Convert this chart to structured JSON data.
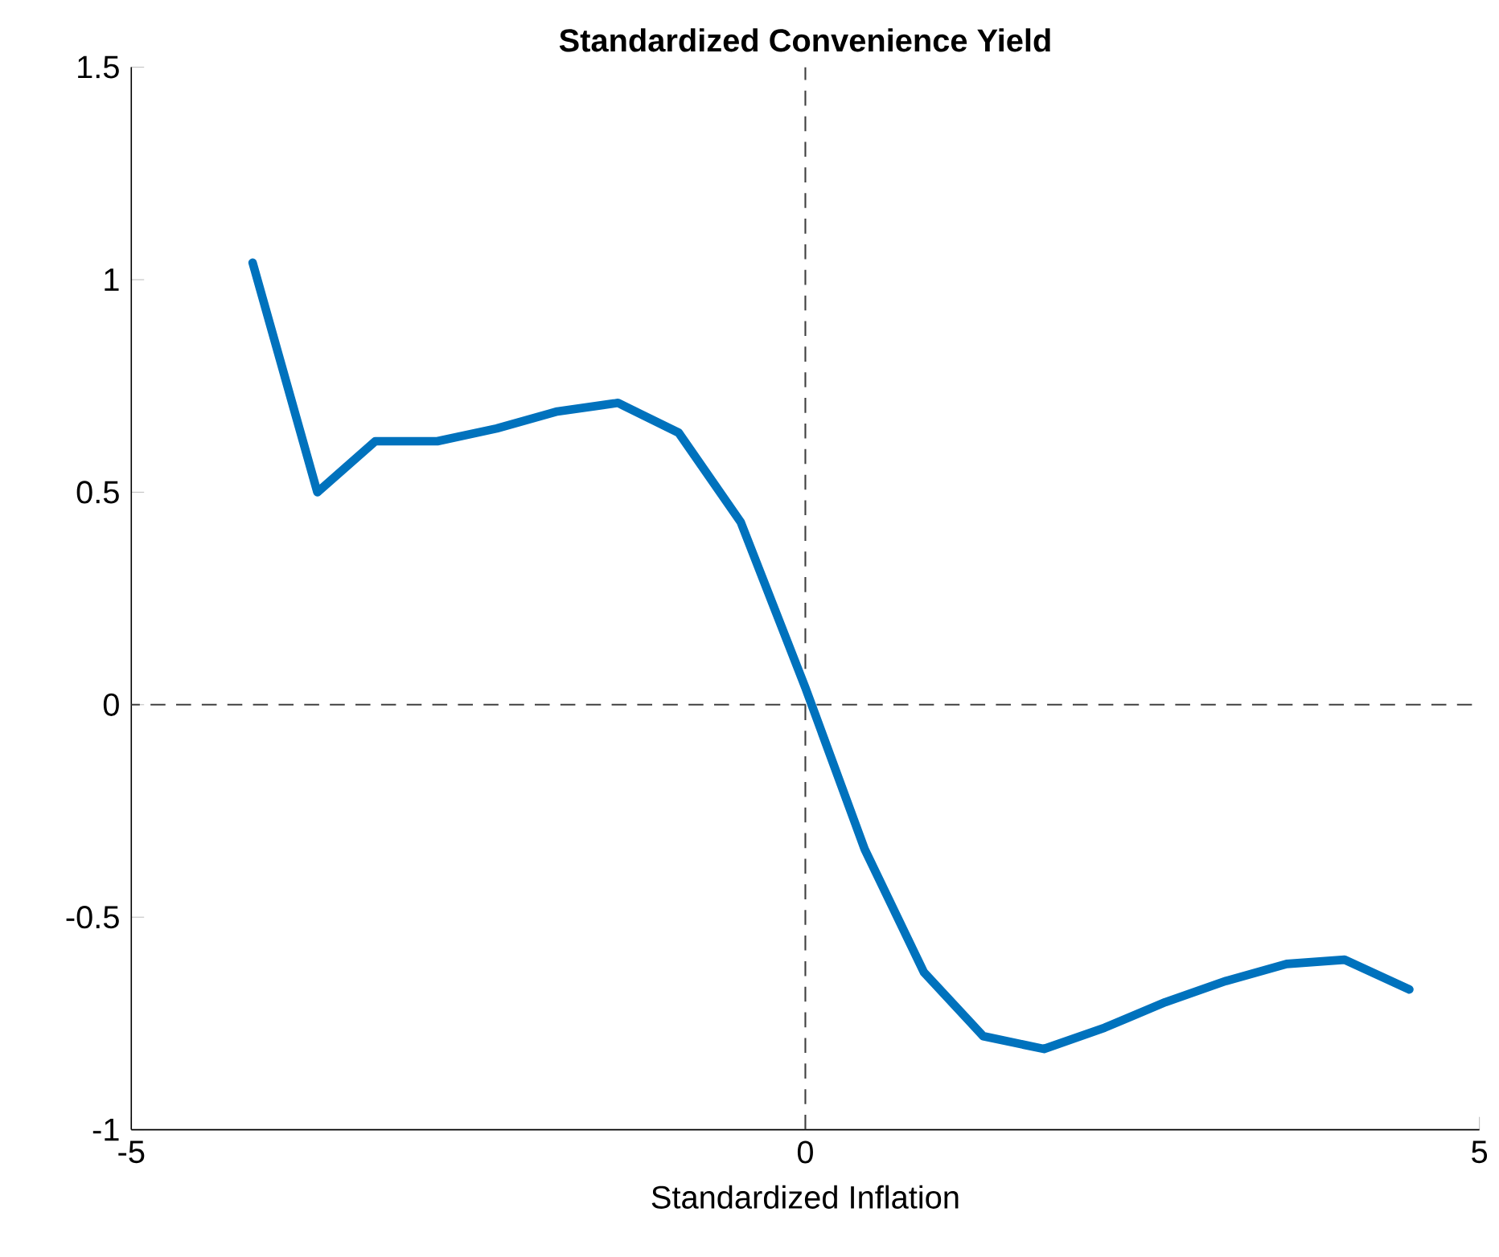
{
  "chart_data": {
    "type": "line",
    "title": "Standardized Convenience Yield",
    "xlabel": "Standardized Inflation",
    "series": [
      {
        "color": "#0072bd",
        "x": [
          -4.1,
          -3.62,
          -3.19,
          -2.73,
          -2.29,
          -1.84,
          -1.39,
          -0.94,
          -0.48,
          0.0,
          0.44,
          0.88,
          1.32,
          1.77,
          2.22,
          2.67,
          3.12,
          3.57,
          4.0,
          4.48
        ],
        "values": [
          1.04,
          0.5,
          0.62,
          0.62,
          0.65,
          0.69,
          0.71,
          0.64,
          0.43,
          0.04,
          -0.34,
          -0.63,
          -0.78,
          -0.81,
          -0.76,
          -0.7,
          -0.65,
          -0.61,
          -0.6,
          -0.67
        ]
      }
    ],
    "xlim": [
      -5,
      5
    ],
    "xticks": [
      -5,
      0,
      5
    ],
    "ylim": [
      -1,
      1.5
    ],
    "yticks": [
      -1,
      -0.5,
      0,
      0.5,
      1,
      1.5
    ],
    "ref_lines": [
      {
        "axis": "x",
        "value": 0,
        "color": "#404040",
        "line_style": "dashed"
      },
      {
        "axis": "y",
        "value": 0,
        "color": "#404040",
        "line_style": "dashed"
      }
    ],
    "marker": "none",
    "line_style": "solid"
  }
}
